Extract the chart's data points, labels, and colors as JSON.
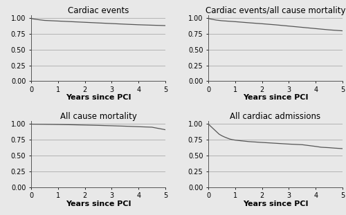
{
  "titles": [
    "Cardiac events",
    "Cardiac events/all cause mortality",
    "All cause mortality",
    "All cardiac admissions"
  ],
  "xlabel": "Years since PCI",
  "xlim": [
    0,
    5
  ],
  "ylim": [
    0.0,
    1.05
  ],
  "yticks": [
    0.0,
    0.25,
    0.5,
    0.75,
    1.0
  ],
  "xticks": [
    0,
    1,
    2,
    3,
    4,
    5
  ],
  "line_color": "#555555",
  "curves": {
    "cardiac_events": {
      "x": [
        0,
        0.05,
        0.3,
        0.5,
        1.0,
        1.5,
        2.0,
        2.5,
        3.0,
        3.5,
        4.0,
        4.5,
        5.0
      ],
      "y": [
        1.0,
        0.99,
        0.975,
        0.965,
        0.955,
        0.945,
        0.935,
        0.925,
        0.915,
        0.905,
        0.896,
        0.889,
        0.883
      ]
    },
    "cardiac_events_mortality": {
      "x": [
        0,
        0.05,
        0.3,
        0.5,
        1.0,
        1.5,
        2.0,
        2.5,
        3.0,
        3.5,
        4.0,
        4.5,
        5.0
      ],
      "y": [
        1.0,
        0.99,
        0.97,
        0.96,
        0.945,
        0.928,
        0.912,
        0.895,
        0.875,
        0.855,
        0.835,
        0.815,
        0.8
      ]
    },
    "all_cause_mortality": {
      "x": [
        0,
        0.05,
        0.5,
        1.0,
        1.5,
        2.0,
        2.5,
        3.0,
        3.5,
        4.0,
        4.5,
        5.0
      ],
      "y": [
        1.0,
        0.998,
        0.996,
        0.993,
        0.989,
        0.984,
        0.979,
        0.973,
        0.966,
        0.958,
        0.95,
        0.91
      ]
    },
    "all_cardiac_admissions": {
      "x": [
        0,
        0.1,
        0.2,
        0.3,
        0.4,
        0.5,
        0.6,
        0.7,
        0.8,
        0.9,
        1.0,
        1.2,
        1.5,
        2.0,
        2.5,
        3.0,
        3.5,
        4.0,
        4.2,
        4.5,
        4.7,
        5.0
      ],
      "y": [
        1.0,
        0.96,
        0.92,
        0.88,
        0.84,
        0.815,
        0.795,
        0.778,
        0.762,
        0.752,
        0.745,
        0.735,
        0.722,
        0.708,
        0.695,
        0.682,
        0.672,
        0.645,
        0.632,
        0.625,
        0.618,
        0.61
      ]
    }
  },
  "title_fontsize": 8.5,
  "label_fontsize": 8,
  "tick_fontsize": 7,
  "bg_color": "#e8e8e8",
  "plot_bg_color": "#e8e8e8",
  "grid_color": "#aaaaaa",
  "grid_linewidth": 0.6
}
